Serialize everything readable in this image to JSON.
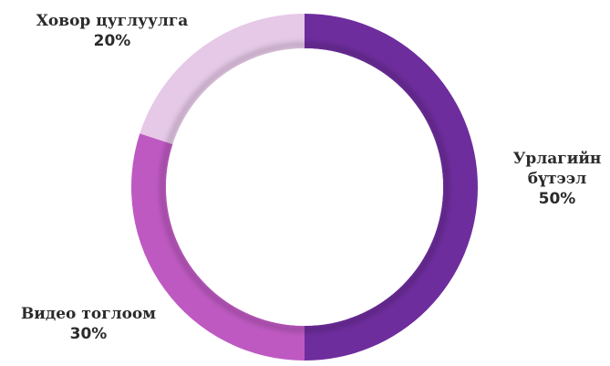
{
  "chart_data": {
    "type": "donut",
    "slices": [
      {
        "label_lines": [
          "Урлагийн",
          "бүтээл"
        ],
        "value": 50,
        "value_text": "50%",
        "color": "#6E2D9D"
      },
      {
        "label_lines": [
          "Видео тоглоом"
        ],
        "value": 30,
        "value_text": "30%",
        "color": "#BE59C2"
      },
      {
        "label_lines": [
          "Ховор цуглуулга"
        ],
        "value": 20,
        "value_text": "20%",
        "color": "#E6C8E7"
      }
    ]
  }
}
